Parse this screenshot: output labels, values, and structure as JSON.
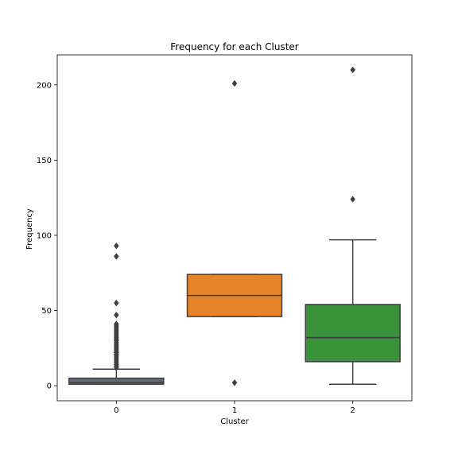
{
  "chart_data": {
    "type": "box",
    "title": "Frequency for each Cluster",
    "xlabel": "Cluster",
    "ylabel": "Frequency",
    "categories": [
      "0",
      "1",
      "2"
    ],
    "ylim": [
      -10,
      220
    ],
    "yticks": [
      0,
      50,
      100,
      150,
      200
    ],
    "yticks_labels": [
      "0",
      "50",
      "100",
      "150",
      "200"
    ],
    "grid": false,
    "boxes": [
      {
        "category": "0",
        "color": "#5f6b7a",
        "q1": 1,
        "median": 2,
        "q3": 5,
        "whisker_low": 1,
        "whisker_high": 11,
        "outliers": [
          12,
          13,
          14,
          15,
          16,
          17,
          18,
          19,
          20,
          21,
          22,
          23,
          24,
          25,
          26,
          27,
          28,
          29,
          30,
          31,
          32,
          33,
          34,
          35,
          36,
          37,
          38,
          39,
          40,
          41,
          47,
          55,
          86,
          93
        ]
      },
      {
        "category": "1",
        "color": "#e6842a",
        "q1": 46,
        "median": 60,
        "q3": 74,
        "whisker_low": 46,
        "whisker_high": 74,
        "outliers": [
          2,
          201
        ]
      },
      {
        "category": "2",
        "color": "#3a923a",
        "q1": 16,
        "median": 32,
        "q3": 54,
        "whisker_low": 1,
        "whisker_high": 97,
        "outliers": [
          124,
          210
        ]
      }
    ]
  }
}
